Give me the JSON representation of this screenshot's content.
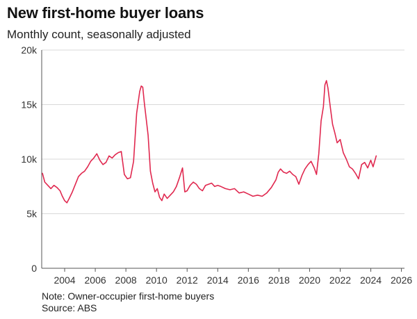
{
  "header": {
    "title": "New first-home buyer loans",
    "subtitle": "Monthly count, seasonally adjusted"
  },
  "footer": {
    "note": "Note: Owner-occupier first-home buyers",
    "source": "Source: ABS"
  },
  "colors": {
    "line": "#e0284f",
    "axis": "#555555",
    "grid": "#d9d9d9"
  },
  "chart_data": {
    "type": "line",
    "title": "New first-home buyer loans",
    "subtitle": "Monthly count, seasonally adjusted",
    "xlabel": "",
    "ylabel": "",
    "xlim": [
      2002.5,
      2026.2
    ],
    "ylim": [
      0,
      20000
    ],
    "grid": "horizontal",
    "x_ticks": [
      2004,
      2006,
      2008,
      2010,
      2012,
      2014,
      2016,
      2018,
      2020,
      2022,
      2024,
      2026
    ],
    "x_tick_labels": [
      "2004",
      "2006",
      "2008",
      "2010",
      "2012",
      "2014",
      "2016",
      "2018",
      "2020",
      "2022",
      "2024",
      "2026"
    ],
    "y_ticks": [
      0,
      5000,
      10000,
      15000,
      20000
    ],
    "y_tick_labels": [
      "0",
      "5k",
      "10k",
      "15k",
      "20k"
    ],
    "series": [
      {
        "x": [
          2002.55,
          2002.7,
          2002.9,
          2003.1,
          2003.3,
          2003.5,
          2003.7,
          2003.85,
          2004.0,
          2004.15,
          2004.3,
          2004.5,
          2004.7,
          2004.9,
          2005.1,
          2005.3,
          2005.5,
          2005.7,
          2005.9,
          2006.1,
          2006.3,
          2006.5,
          2006.7,
          2006.9,
          2007.1,
          2007.3,
          2007.5,
          2007.7,
          2007.9,
          2008.1,
          2008.3,
          2008.5,
          2008.7,
          2008.9,
          2009.0,
          2009.1,
          2009.2,
          2009.3,
          2009.45,
          2009.6,
          2009.75,
          2009.9,
          2010.05,
          2010.2,
          2010.35,
          2010.5,
          2010.7,
          2010.9,
          2011.1,
          2011.3,
          2011.5,
          2011.7,
          2011.85,
          2012.0,
          2012.2,
          2012.4,
          2012.6,
          2012.8,
          2013.0,
          2013.2,
          2013.4,
          2013.6,
          2013.8,
          2014.0,
          2014.2,
          2014.5,
          2014.8,
          2015.1,
          2015.4,
          2015.7,
          2016.0,
          2016.3,
          2016.6,
          2016.9,
          2017.2,
          2017.5,
          2017.8,
          2017.95,
          2018.1,
          2018.3,
          2018.5,
          2018.7,
          2018.9,
          2019.1,
          2019.3,
          2019.5,
          2019.7,
          2019.9,
          2020.1,
          2020.3,
          2020.45,
          2020.6,
          2020.75,
          2020.9,
          2021.0,
          2021.1,
          2021.2,
          2021.35,
          2021.5,
          2021.65,
          2021.8,
          2022.0,
          2022.2,
          2022.4,
          2022.6,
          2022.8,
          2023.0,
          2023.2,
          2023.4,
          2023.6,
          2023.8,
          2024.0,
          2024.15,
          2024.35
        ],
        "values": [
          8700,
          7900,
          7600,
          7300,
          7600,
          7400,
          7100,
          6600,
          6200,
          6000,
          6400,
          7000,
          7700,
          8400,
          8700,
          8900,
          9300,
          9800,
          10100,
          10500,
          9900,
          9500,
          9700,
          10300,
          10100,
          10400,
          10600,
          10700,
          8600,
          8200,
          8300,
          9800,
          14200,
          16200,
          16700,
          16600,
          15200,
          14000,
          12200,
          8900,
          7800,
          7000,
          7300,
          6500,
          6200,
          6800,
          6400,
          6700,
          7000,
          7500,
          8300,
          9200,
          7000,
          7100,
          7600,
          7900,
          7700,
          7300,
          7100,
          7600,
          7700,
          7800,
          7500,
          7600,
          7500,
          7300,
          7200,
          7300,
          6900,
          7000,
          6800,
          6600,
          6700,
          6600,
          6900,
          7400,
          8100,
          8800,
          9100,
          8800,
          8700,
          8900,
          8600,
          8400,
          7700,
          8500,
          9100,
          9500,
          9800,
          9200,
          8600,
          10500,
          13500,
          14800,
          16800,
          17200,
          16500,
          14800,
          13200,
          12400,
          11500,
          11800,
          10600,
          10000,
          9300,
          9100,
          8700,
          8200,
          9500,
          9700,
          9200,
          9900,
          9300,
          10300
        ]
      }
    ],
    "annotations": [
      "Note: Owner-occupier first-home buyers",
      "Source: ABS"
    ]
  }
}
